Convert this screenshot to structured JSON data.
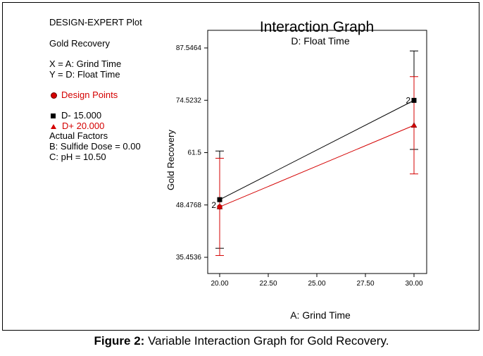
{
  "plot_info": {
    "heading": "DESIGN-EXPERT Plot",
    "response": "Gold Recovery",
    "x_line": "X = A: Grind Time",
    "y_line": "Y = D: Float Time",
    "design_points_label": "Design Points",
    "legend_low": "D- 15.000",
    "legend_high": "D+ 20.000",
    "actual_factors_heading": "Actual Factors",
    "factor_b": "B: Sulfide Dose = 0.00",
    "factor_c": "C: pH = 10.50"
  },
  "caption": {
    "prefix": "Figure 2:",
    "text": " Variable Interaction Graph for Gold Recovery."
  },
  "colors": {
    "low_series": "#000000",
    "high_series": "#d40000"
  },
  "chart_data": {
    "type": "line",
    "title": "Interaction Graph",
    "subtitle": "D: Float Time",
    "xlabel": "A: Grind Time",
    "ylabel": "Gold Recovery",
    "xlim": [
      20,
      30
    ],
    "ylim": [
      35.4536,
      87.5464
    ],
    "x_ticks": [
      "20.00",
      "22.50",
      "25.00",
      "27.50",
      "30.00"
    ],
    "y_ticks": [
      "35.4536",
      "48.4768",
      "61.5",
      "74.5232",
      "87.5464"
    ],
    "series": [
      {
        "name": "D- 15.000",
        "marker": "square",
        "x": [
          20,
          30
        ],
        "y": [
          49.8,
          74.5
        ],
        "lsd_low": [
          37.7,
          62.3
        ],
        "lsd_high": [
          61.9,
          86.8
        ]
      },
      {
        "name": "D+ 20.000",
        "marker": "triangle",
        "x": [
          20,
          30
        ],
        "y": [
          48.0,
          68.3
        ],
        "lsd_low": [
          35.9,
          56.2
        ],
        "lsd_high": [
          60.1,
          80.4
        ]
      }
    ],
    "point_labels": [
      {
        "text": "2",
        "x": 20,
        "y": 48.4768
      },
      {
        "text": "2",
        "x": 30,
        "y": 74.5232
      }
    ]
  }
}
